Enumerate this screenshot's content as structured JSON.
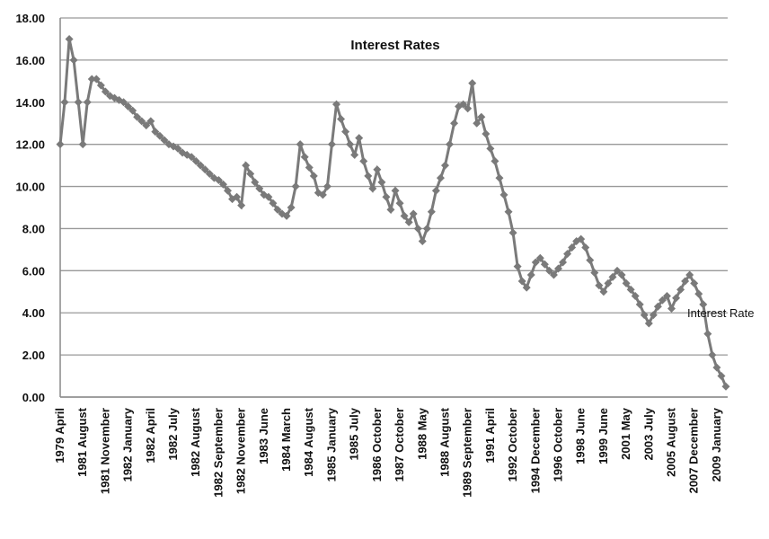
{
  "chart_data": {
    "type": "line",
    "title": "Interest Rates",
    "categories": [
      "1979 April",
      null,
      null,
      null,
      null,
      "1981 August",
      null,
      null,
      null,
      null,
      "1981 November",
      null,
      null,
      null,
      null,
      "1982 January",
      null,
      null,
      null,
      null,
      "1982 April",
      null,
      null,
      null,
      null,
      "1982 July",
      null,
      null,
      null,
      null,
      "1982 August",
      null,
      null,
      null,
      null,
      "1982 September",
      null,
      null,
      null,
      null,
      "1982 November",
      null,
      null,
      null,
      null,
      "1983 June",
      null,
      null,
      null,
      null,
      "1984 March",
      null,
      null,
      null,
      null,
      "1984 August",
      null,
      null,
      null,
      null,
      "1985 January",
      null,
      null,
      null,
      null,
      "1985 July",
      null,
      null,
      null,
      null,
      "1986 October",
      null,
      null,
      null,
      null,
      "1987 October",
      null,
      null,
      null,
      null,
      "1988 May",
      null,
      null,
      null,
      null,
      "1988 August",
      null,
      null,
      null,
      null,
      "1989 September",
      null,
      null,
      null,
      null,
      "1991 April",
      null,
      null,
      null,
      null,
      "1992 October",
      null,
      null,
      null,
      null,
      "1994 December",
      null,
      null,
      null,
      null,
      "1996 October",
      null,
      null,
      null,
      null,
      "1998 June",
      null,
      null,
      null,
      null,
      "1999 June",
      null,
      null,
      null,
      null,
      "2001 May",
      null,
      null,
      null,
      null,
      "2003 July",
      null,
      null,
      null,
      null,
      "2005 August",
      null,
      null,
      null,
      null,
      "2007 December",
      null,
      null,
      null,
      null,
      "2009 January",
      null,
      null
    ],
    "series": [
      {
        "name": "Interest Rate",
        "color": "#7a7a7a",
        "values": [
          12,
          14,
          17,
          16,
          14,
          12,
          14,
          15.1,
          15.1,
          14.8,
          14.5,
          14.3,
          14.2,
          14.1,
          14,
          13.8,
          13.6,
          13.3,
          13.1,
          12.9,
          13.1,
          12.6,
          12.4,
          12.2,
          12,
          11.9,
          11.8,
          11.6,
          11.5,
          11.4,
          11.2,
          11,
          10.8,
          10.6,
          10.4,
          10.3,
          10.1,
          9.8,
          9.4,
          9.5,
          9.1,
          11,
          10.6,
          10.2,
          9.9,
          9.6,
          9.5,
          9.2,
          8.9,
          8.7,
          8.6,
          9,
          10,
          12,
          11.4,
          10.9,
          10.5,
          9.7,
          9.6,
          10,
          12,
          13.9,
          13.2,
          12.6,
          12,
          11.5,
          12.3,
          11.2,
          10.5,
          9.9,
          10.8,
          10.2,
          9.5,
          8.9,
          9.8,
          9.2,
          8.6,
          8.3,
          8.7,
          8,
          7.4,
          8,
          8.8,
          9.8,
          10.4,
          11,
          12,
          13,
          13.8,
          13.9,
          13.7,
          14.9,
          13,
          13.3,
          12.5,
          11.8,
          11.2,
          10.4,
          9.6,
          8.8,
          7.8,
          6.2,
          5.5,
          5.2,
          5.8,
          6.4,
          6.6,
          6.3,
          6,
          5.8,
          6.1,
          6.4,
          6.8,
          7.1,
          7.4,
          7.5,
          7.1,
          6.5,
          5.9,
          5.3,
          5,
          5.4,
          5.7,
          6,
          5.8,
          5.4,
          5.1,
          4.8,
          4.4,
          3.9,
          3.5,
          3.9,
          4.3,
          4.6,
          4.8,
          4.2,
          4.7,
          5.1,
          5.5,
          5.8,
          5.4,
          4.9,
          4.4,
          3,
          2,
          1.4,
          1,
          0.5
        ]
      }
    ],
    "ylim": [
      0,
      18
    ],
    "yticks": [
      {
        "value": 0,
        "label": "0.00"
      },
      {
        "value": 2,
        "label": "2.00"
      },
      {
        "value": 4,
        "label": "4.00"
      },
      {
        "value": 6,
        "label": "6.00"
      },
      {
        "value": 8,
        "label": "8.00"
      },
      {
        "value": 10,
        "label": "10.00"
      },
      {
        "value": 12,
        "label": "12.00"
      },
      {
        "value": 14,
        "label": "14.00"
      },
      {
        "value": 16,
        "label": "16.00"
      },
      {
        "value": 18,
        "label": "18.00"
      }
    ],
    "grid": true
  }
}
